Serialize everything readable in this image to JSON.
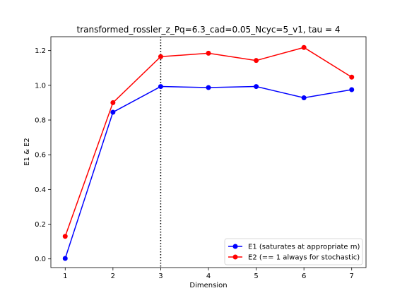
{
  "chart_data": {
    "type": "line",
    "title": "transformed_rossler_z_Pq=6.3_cad=0.05_Ncyc=5_v1, tau = 4",
    "xlabel": "Dimension",
    "ylabel": "E1 & E2",
    "x": [
      1,
      2,
      3,
      4,
      5,
      6,
      7
    ],
    "xlim": [
      0.7,
      7.3
    ],
    "ylim": [
      -0.05,
      1.28
    ],
    "xticks": [
      1,
      2,
      3,
      4,
      5,
      6,
      7
    ],
    "yticks": [
      0.0,
      0.2,
      0.4,
      0.6,
      0.8,
      1.0,
      1.2
    ],
    "grid": false,
    "legend_position": "lower-right",
    "vertical_line": {
      "x": 3,
      "style": "dotted",
      "color": "#000000"
    },
    "series": [
      {
        "name": "E1 (saturates at appropriate m)",
        "color": "#0000ff",
        "values": [
          0.003,
          0.845,
          0.993,
          0.987,
          0.993,
          0.928,
          0.975
        ]
      },
      {
        "name": "E2 (== 1 always for stochastic)",
        "color": "#ff0000",
        "values": [
          0.13,
          0.9,
          1.165,
          1.185,
          1.143,
          1.218,
          1.047
        ]
      }
    ]
  }
}
